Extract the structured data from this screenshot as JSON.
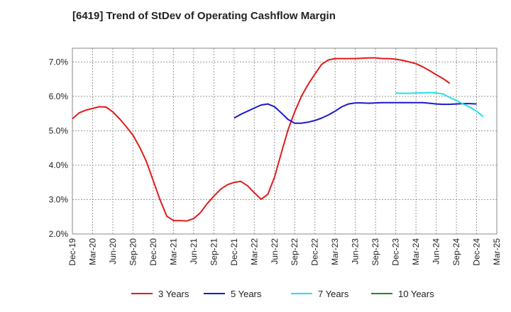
{
  "chart_data": {
    "type": "line",
    "title": "[6419]  Trend of StDev of Operating Cashflow Margin",
    "x_labels": [
      "Dec-19",
      "Mar-20",
      "Jun-20",
      "Sep-20",
      "Dec-20",
      "Mar-21",
      "Jun-21",
      "Sep-21",
      "Dec-21",
      "Mar-22",
      "Jun-22",
      "Sep-22",
      "Dec-22",
      "Mar-23",
      "Jun-23",
      "Sep-23",
      "Dec-23",
      "Mar-24",
      "Jun-24",
      "Sep-24",
      "Dec-24",
      "Mar-25"
    ],
    "y_ticks": [
      "2.0%",
      "3.0%",
      "4.0%",
      "5.0%",
      "6.0%",
      "7.0%"
    ],
    "ylim": [
      2.0,
      7.4
    ],
    "grid": true,
    "legend_position": "bottom",
    "series": [
      {
        "name": "3 Years",
        "color": "#e01b1b",
        "start_index": 0,
        "values": [
          5.35,
          5.52,
          5.6,
          5.65,
          5.7,
          5.69,
          5.55,
          5.35,
          5.12,
          4.87,
          4.52,
          4.1,
          3.55,
          3.0,
          2.52,
          2.39,
          2.39,
          2.38,
          2.45,
          2.62,
          2.88,
          3.1,
          3.3,
          3.43,
          3.5,
          3.53,
          3.4,
          3.2,
          3.01,
          3.15,
          3.65,
          4.35,
          5.02,
          5.55,
          6.0,
          6.35,
          6.65,
          6.93,
          7.06,
          7.1,
          7.1,
          7.1,
          7.1,
          7.11,
          7.12,
          7.12,
          7.1,
          7.1,
          7.08,
          7.05,
          7.0,
          6.95,
          6.86,
          6.75,
          6.63,
          6.52,
          6.38
        ]
      },
      {
        "name": "5 Years",
        "color": "#1a1acc",
        "start_index": 24,
        "values": [
          5.37,
          5.48,
          5.57,
          5.66,
          5.75,
          5.78,
          5.7,
          5.52,
          5.33,
          5.22,
          5.22,
          5.25,
          5.3,
          5.37,
          5.46,
          5.57,
          5.7,
          5.78,
          5.81,
          5.81,
          5.8,
          5.81,
          5.82,
          5.82,
          5.82,
          5.82,
          5.82,
          5.82,
          5.82,
          5.8,
          5.78,
          5.77,
          5.77,
          5.78,
          5.79,
          5.79,
          5.78
        ]
      },
      {
        "name": "7 Years",
        "color": "#22e0ea",
        "start_index": 48,
        "values": [
          6.1,
          6.09,
          6.09,
          6.1,
          6.1,
          6.11,
          6.1,
          6.07,
          5.97,
          5.88,
          5.78,
          5.69,
          5.57,
          5.41
        ]
      },
      {
        "name": "10 Years",
        "color": "#1e8a1e",
        "start_index": 0,
        "values": []
      }
    ]
  }
}
